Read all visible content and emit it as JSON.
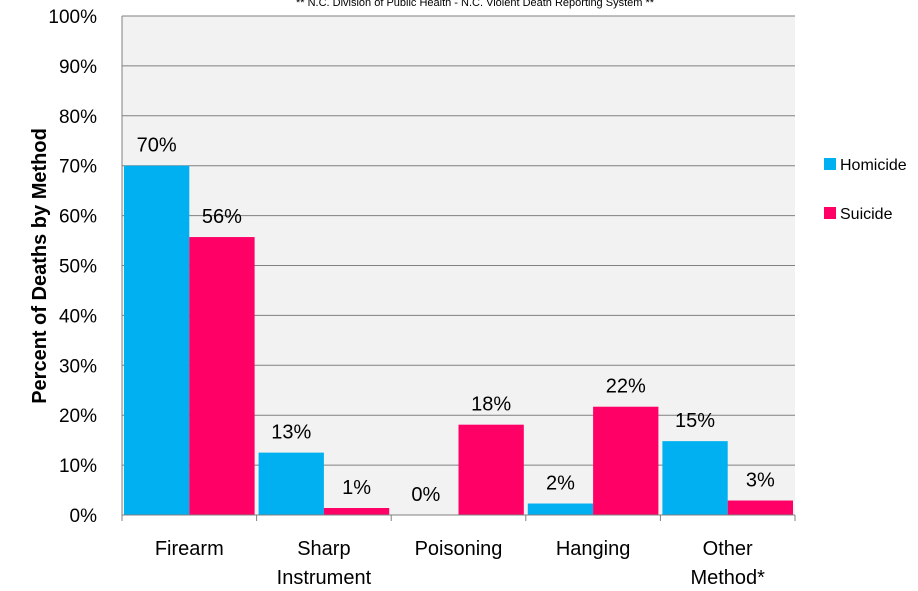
{
  "source_note": "** N.C. Division of Public Health - N.C. Violent Death Reporting System **",
  "chart_data": {
    "type": "bar",
    "title": "",
    "xlabel": "",
    "ylabel": "Percent of Deaths by Method",
    "categories": [
      [
        "Firearm"
      ],
      [
        "Sharp",
        "Instrument"
      ],
      [
        "Poisoning"
      ],
      [
        "Hanging"
      ],
      [
        "Other",
        "Method*"
      ]
    ],
    "series": [
      {
        "name": "Homicide",
        "color": "#00b0f0",
        "values": [
          70,
          12.5,
          0,
          2.3,
          14.8
        ],
        "labels": [
          "70%",
          "13%",
          "0%",
          "2%",
          "15%"
        ]
      },
      {
        "name": "Suicide",
        "color": "#ff0066",
        "values": [
          55.7,
          1.4,
          18.1,
          21.7,
          2.9
        ],
        "labels": [
          "56%",
          "1%",
          "18%",
          "22%",
          "3%"
        ]
      }
    ],
    "yticks": [
      "0%",
      "10%",
      "20%",
      "30%",
      "40%",
      "50%",
      "60%",
      "70%",
      "80%",
      "90%",
      "100%"
    ],
    "ylim": [
      0,
      100
    ],
    "grid": true,
    "legend_position": "right"
  }
}
